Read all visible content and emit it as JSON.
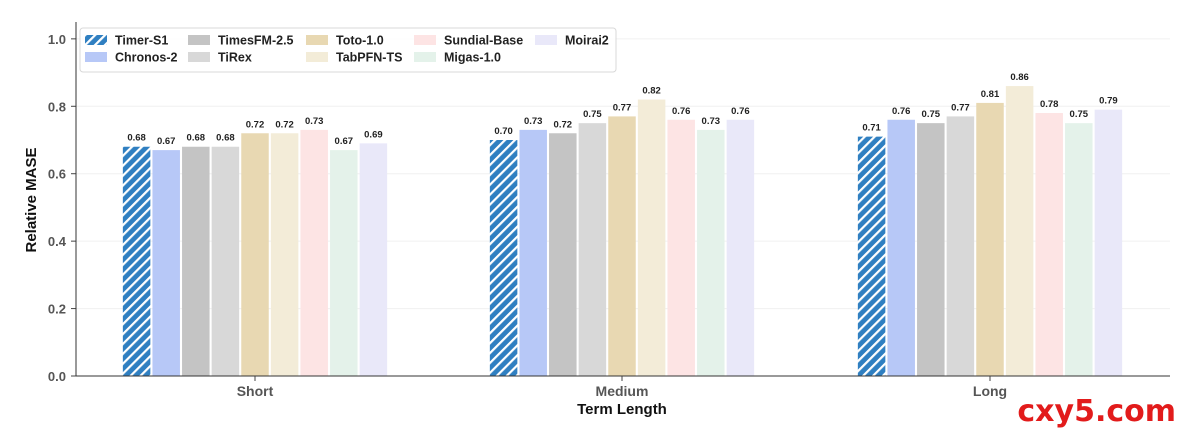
{
  "chart_data": {
    "type": "bar",
    "title": "",
    "xlabel": "Term Length",
    "ylabel": "Relative MASE",
    "ylim": [
      0.0,
      1.05
    ],
    "yticks": [
      "0.0",
      "0.2",
      "0.4",
      "0.6",
      "0.8",
      "1.0"
    ],
    "grid": "horizontal, light",
    "legend_position": "top-left",
    "categories": [
      "Short",
      "Medium",
      "Long"
    ],
    "series": [
      {
        "name": "Timer-S1",
        "color": "#2f7fc1",
        "pattern": "hatched",
        "values": [
          0.68,
          0.7,
          0.71
        ],
        "labels": [
          "0.68",
          "0.70",
          "0.71"
        ]
      },
      {
        "name": "Chronos-2",
        "color": "#b7c8f7",
        "values": [
          0.67,
          0.73,
          0.76
        ],
        "labels": [
          "0.67",
          "0.73",
          "0.76"
        ]
      },
      {
        "name": "TimesFM-2.5",
        "color": "#c4c4c4",
        "values": [
          0.68,
          0.72,
          0.75
        ],
        "labels": [
          "0.68",
          "0.72",
          "0.75"
        ]
      },
      {
        "name": "TiRex",
        "color": "#d8d8d8",
        "values": [
          0.68,
          0.75,
          0.77
        ],
        "labels": [
          "0.68",
          "0.75",
          "0.77"
        ]
      },
      {
        "name": "Toto-1.0",
        "color": "#e8d8b2",
        "values": [
          0.72,
          0.77,
          0.81
        ],
        "labels": [
          "0.72",
          "0.77",
          "0.81"
        ]
      },
      {
        "name": "TabPFN-TS",
        "color": "#f3ecd8",
        "values": [
          0.72,
          0.82,
          0.86
        ],
        "labels": [
          "0.72",
          "0.82",
          "0.86"
        ]
      },
      {
        "name": "Sundial-Base",
        "color": "#fde4e4",
        "values": [
          0.73,
          0.76,
          0.78
        ],
        "labels": [
          "0.73",
          "0.76",
          "0.78"
        ]
      },
      {
        "name": "Migas-1.0",
        "color": "#e4f2ea",
        "values": [
          0.67,
          0.73,
          0.75
        ],
        "labels": [
          "0.67",
          "0.73",
          "0.75"
        ]
      },
      {
        "name": "Moirai2",
        "color": "#e9e8f9",
        "values": [
          0.69,
          0.76,
          0.79
        ],
        "labels": [
          "0.69",
          "0.76",
          "0.79"
        ]
      }
    ]
  },
  "watermark": "cxy5.com"
}
